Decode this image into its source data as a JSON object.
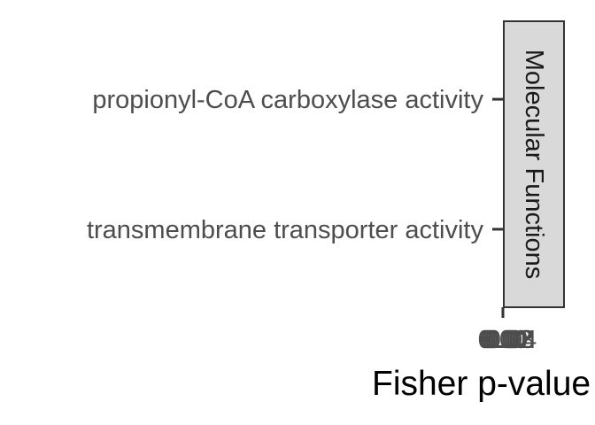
{
  "chart_data": {
    "type": "bar",
    "orientation": "horizontal",
    "categories": [
      "propionyl-CoA carboxylase activity",
      "transmembrane transporter activity"
    ],
    "values": [
      0,
      0
    ],
    "xlabel": "Fisher p-value",
    "ylabel": "",
    "xlim": [
      0,
      0.04
    ],
    "x_ticks": [
      "0.00",
      "0.01",
      "0.02",
      "0.03",
      "0.04"
    ],
    "facet_label": "Molecular Functions",
    "grid": false,
    "legend": "none"
  },
  "colors": {
    "tick_text": "#4d4d4d",
    "axis_line": "#333333",
    "strip_fill": "#d9d9d9",
    "strip_border": "#333333",
    "title_text": "#000000"
  }
}
